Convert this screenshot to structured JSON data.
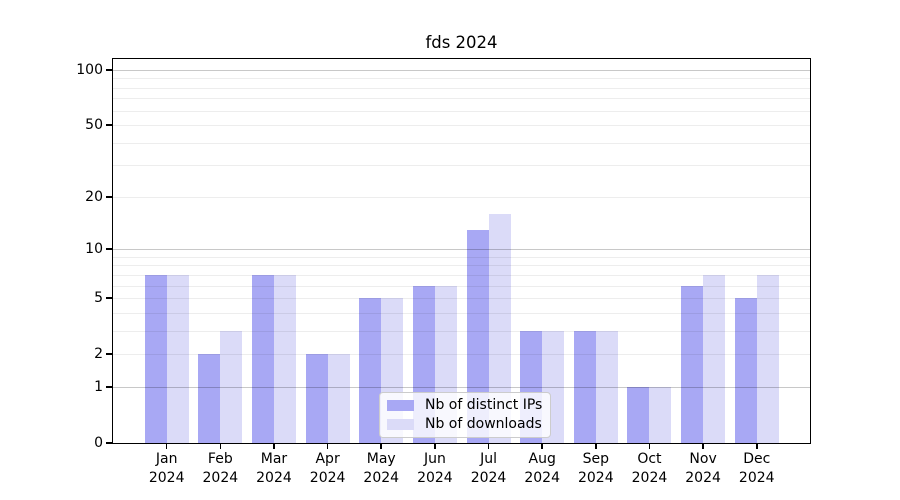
{
  "figure": {
    "title": "fds 2024"
  },
  "chart_data": {
    "type": "bar",
    "title": "fds 2024",
    "categories": [
      "Jan",
      "Feb",
      "Mar",
      "Apr",
      "May",
      "Jun",
      "Jul",
      "Aug",
      "Sep",
      "Oct",
      "Nov",
      "Dec"
    ],
    "year": "2024",
    "series": [
      {
        "name": "Nb of distinct IPs",
        "color": "#a8a8f4",
        "values": [
          7,
          2,
          7,
          2,
          5,
          6,
          13,
          3,
          3,
          1,
          6,
          5
        ]
      },
      {
        "name": "Nb of downloads",
        "color": "#dbdbf8",
        "values": [
          7,
          3,
          7,
          2,
          5,
          6,
          16,
          3,
          3,
          1,
          7,
          7
        ]
      }
    ],
    "y_axis": {
      "scale": "log10(1+value)",
      "tick_values": [
        0,
        1,
        2,
        5,
        10,
        20,
        50,
        100
      ],
      "major_grid_values": [
        1,
        10,
        100
      ],
      "minor_grid_values": [
        2,
        3,
        4,
        5,
        6,
        7,
        8,
        9,
        20,
        30,
        40,
        50,
        60,
        70,
        80,
        90
      ],
      "range": [
        0,
        115
      ]
    },
    "legend_position": "lower center",
    "grid": true
  },
  "colors": {
    "bar_ips": "#a8a8f4",
    "bar_downloads": "#dbdbf8",
    "grid_major": "#c8c8c8",
    "grid_minor": "#ededed",
    "axis": "#000000",
    "background": "#ffffff"
  }
}
